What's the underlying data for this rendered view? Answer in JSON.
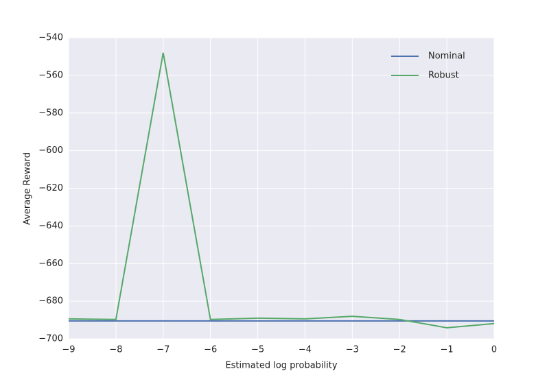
{
  "chart_data": {
    "type": "line",
    "xlabel": "Estimated log probability",
    "ylabel": "Average Reward",
    "x": [
      -9,
      -8,
      -7,
      -6,
      -5,
      -4,
      -3,
      -2,
      -1,
      0
    ],
    "series": [
      {
        "name": "Nominal",
        "color": "#4c72b0",
        "values": [
          -690.5,
          -690.5,
          -690.5,
          -690.5,
          -690.5,
          -690.5,
          -690.5,
          -690.5,
          -690.5,
          -690.5
        ]
      },
      {
        "name": "Robust",
        "color": "#55a868",
        "values": [
          -689.4,
          -689.7,
          -548,
          -689.7,
          -689,
          -689.4,
          -688,
          -689.7,
          -694.1,
          -691.9
        ]
      }
    ],
    "xlim": [
      -9,
      0
    ],
    "ylim": [
      -700,
      -540
    ],
    "xticks": [
      {
        "value": -9,
        "label": "−9"
      },
      {
        "value": -8,
        "label": "−8"
      },
      {
        "value": -7,
        "label": "−7"
      },
      {
        "value": -6,
        "label": "−6"
      },
      {
        "value": -5,
        "label": "−5"
      },
      {
        "value": -4,
        "label": "−4"
      },
      {
        "value": -3,
        "label": "−3"
      },
      {
        "value": -2,
        "label": "−2"
      },
      {
        "value": -1,
        "label": "−1"
      },
      0
    ],
    "yticks": [
      {
        "value": -700,
        "label": "−700"
      },
      {
        "value": -680,
        "label": "−680"
      },
      {
        "value": -660,
        "label": "−660"
      },
      {
        "value": -640,
        "label": "−640"
      },
      {
        "value": -620,
        "label": "−620"
      },
      {
        "value": -600,
        "label": "−600"
      },
      {
        "value": -580,
        "label": "−580"
      },
      {
        "value": -560,
        "label": "−560"
      },
      {
        "value": -540,
        "label": "−540"
      }
    ],
    "grid": true,
    "legend": "upper right"
  }
}
